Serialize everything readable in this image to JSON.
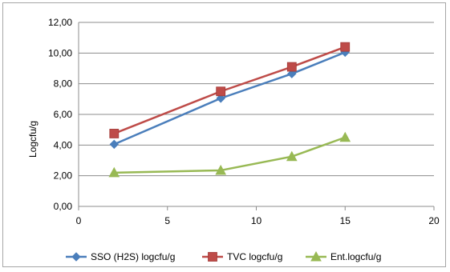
{
  "chart_data": {
    "type": "line",
    "title": "",
    "xlabel": "",
    "ylabel": "Logcfu/g",
    "xlim": [
      0,
      20
    ],
    "ylim": [
      0,
      12
    ],
    "x_ticks": [
      "0",
      "5",
      "10",
      "15",
      "20"
    ],
    "y_ticks": [
      "0,00",
      "2,00",
      "4,00",
      "6,00",
      "8,00",
      "10,00",
      "12,00"
    ],
    "grid": "horizontal",
    "legend_position": "bottom",
    "x": [
      2,
      8,
      12,
      15
    ],
    "series": [
      {
        "name": "SSO (H2S) logcfu/g",
        "values": [
          4.05,
          7.05,
          8.65,
          10.05
        ],
        "color": "#4a7ebb",
        "marker": "diamond"
      },
      {
        "name": "TVC logcfu/g",
        "values": [
          4.75,
          7.5,
          9.1,
          10.4
        ],
        "color": "#be4b48",
        "marker": "square"
      },
      {
        "name": "Ent.logcfu/g",
        "values": [
          2.2,
          2.35,
          3.25,
          4.5
        ],
        "color": "#98b954",
        "marker": "triangle"
      }
    ]
  }
}
